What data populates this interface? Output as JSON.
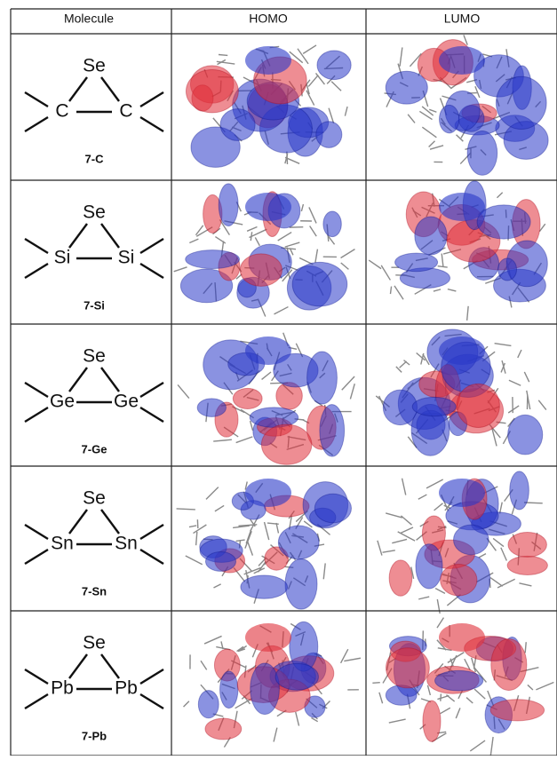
{
  "table": {
    "header": [
      "Molecule",
      "HOMO",
      "LUMO"
    ],
    "rows": [
      {
        "top": "Se",
        "left": "C",
        "right": "C",
        "label": "7-C"
      },
      {
        "top": "Se",
        "left": "Si",
        "right": "Si",
        "label": "7-Si"
      },
      {
        "top": "Se",
        "left": "Ge",
        "right": "Ge",
        "label": "7-Ge"
      },
      {
        "top": "Se",
        "left": "Sn",
        "right": "Sn",
        "label": "7-Sn"
      },
      {
        "top": "Se",
        "left": "Pb",
        "right": "Pb",
        "label": "7-Pb"
      }
    ]
  }
}
